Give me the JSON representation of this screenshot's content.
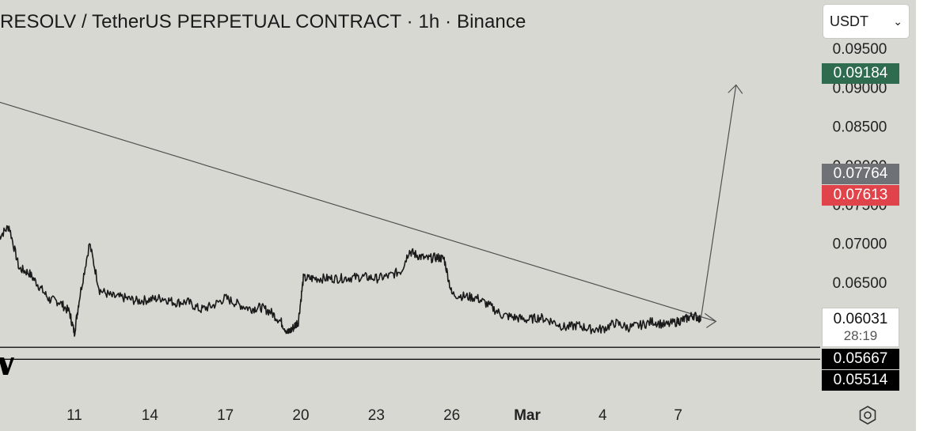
{
  "header": {
    "title": "RESOLV / TetherUS PERPETUAL CONTRACT · 1h · Binance",
    "currency": "USDT"
  },
  "colors": {
    "background": "#d8d8d3",
    "candles": "#1a1a1a",
    "trendline": "#505050",
    "badge_green": "#2e6b4f",
    "badge_gray": "#6e7176",
    "badge_red": "#e0444a",
    "badge_black": "#000000"
  },
  "price_badges": {
    "target": "0.09184",
    "last_gray": "0.07764",
    "last_red": "0.07613",
    "current": "0.06031",
    "countdown": "28:19",
    "support_1": "0.05667",
    "support_2": "0.05514"
  },
  "chart_data": {
    "type": "line",
    "x_unit": "date",
    "x_ticks": [
      "11",
      "14",
      "17",
      "20",
      "23",
      "26",
      "Mar",
      "4",
      "7"
    ],
    "y_ticks": [
      "0.09500",
      "0.09000",
      "0.08500",
      "0.08000",
      "0.07500",
      "0.07000",
      "0.06500"
    ],
    "ylim": [
      0.0535,
      0.098
    ],
    "series": [
      {
        "x": [
          8.0,
          8.4,
          8.8,
          9.2,
          9.6,
          10.0,
          10.4,
          10.8,
          11.0,
          11.2,
          11.6,
          12.0,
          12.5,
          13.0,
          13.5,
          14.0,
          14.5,
          15.0,
          15.5,
          16.0,
          16.5,
          17.0,
          17.5,
          18.0,
          18.4,
          18.8,
          19.2,
          19.5,
          19.7,
          19.9,
          20.1,
          20.5,
          21.0,
          21.5,
          22.0,
          22.5,
          23.0,
          23.5,
          24.0,
          24.3,
          24.6,
          25.0,
          25.4,
          25.7,
          26.0,
          26.5,
          27.0,
          27.5,
          28.0,
          28.5,
          29.0,
          29.5,
          30.0,
          30.5,
          31.0,
          31.5,
          32.0,
          32.5,
          33.0,
          33.5,
          34.0,
          34.5,
          35.0,
          35.3,
          35.6,
          35.9
        ],
        "y": [
          0.0708,
          0.0722,
          0.0668,
          0.0662,
          0.0645,
          0.0628,
          0.0625,
          0.0612,
          0.0585,
          0.063,
          0.07,
          0.064,
          0.0632,
          0.063,
          0.0626,
          0.0628,
          0.063,
          0.0624,
          0.0625,
          0.0615,
          0.062,
          0.063,
          0.0622,
          0.0616,
          0.0618,
          0.0612,
          0.06,
          0.0585,
          0.0592,
          0.06,
          0.0655,
          0.0655,
          0.0655,
          0.0655,
          0.0656,
          0.0657,
          0.0655,
          0.0658,
          0.0665,
          0.069,
          0.0685,
          0.068,
          0.0682,
          0.068,
          0.0635,
          0.0632,
          0.063,
          0.062,
          0.0608,
          0.0605,
          0.0602,
          0.0605,
          0.06,
          0.0592,
          0.0595,
          0.059,
          0.059,
          0.0598,
          0.0592,
          0.0595,
          0.06,
          0.0595,
          0.06,
          0.0603,
          0.0608,
          0.0603
        ]
      }
    ],
    "annotations": {
      "trendline": {
        "from": [
          7.6,
          0.0885
        ],
        "to": [
          36.5,
          0.06
        ]
      },
      "projection_arrow": {
        "from": [
          35.9,
          0.0603
        ],
        "to": [
          37.3,
          0.0903
        ]
      },
      "horizontal_levels": [
        0.05667,
        0.05514
      ]
    }
  }
}
